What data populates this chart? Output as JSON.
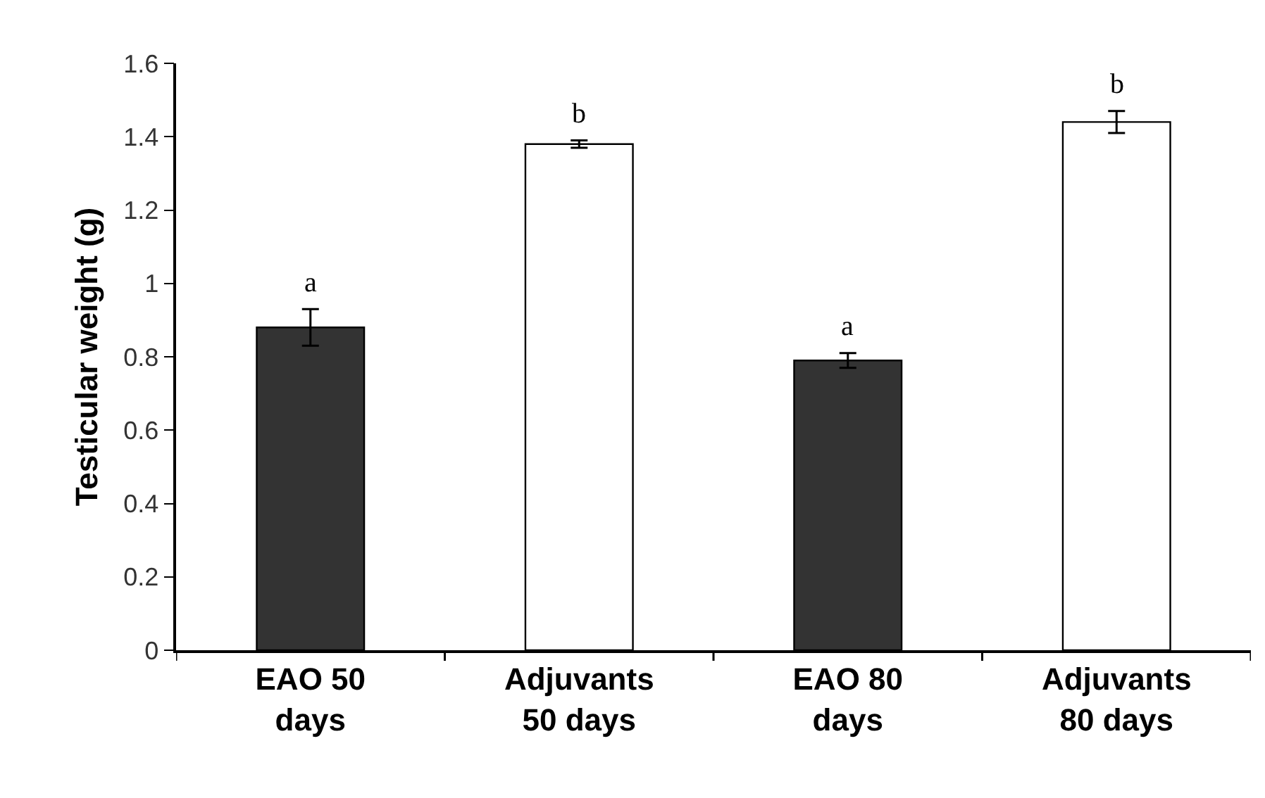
{
  "chart_data": {
    "type": "bar",
    "ylabel": "Testicular weight (g)",
    "categories": [
      "EAO 50\ndays",
      "Adjuvants\n50 days",
      "EAO 80\ndays",
      "Adjuvants\n80 days"
    ],
    "values": [
      0.88,
      1.38,
      0.79,
      1.44
    ],
    "errors": [
      0.05,
      0.01,
      0.02,
      0.03
    ],
    "colors": [
      "#333333",
      "#ffffff",
      "#333333",
      "#ffffff"
    ],
    "ylim": [
      0,
      1.6
    ],
    "yticks": [
      0,
      0.2,
      0.4,
      0.6,
      0.8,
      {
        "value": 1,
        "label": "1"
      },
      1.2,
      1.4,
      1.6
    ],
    "grid": false,
    "annotations": [
      {
        "text": "a",
        "x": "EAO 50\ndays",
        "y": 0.88
      },
      {
        "text": "b",
        "x": "Adjuvants\n50 days",
        "y": 1.38
      },
      {
        "text": "a",
        "x": "EAO 80\ndays",
        "y": 0.79
      },
      {
        "text": "b",
        "x": "Adjuvants\n80 days",
        "y": 1.44
      }
    ]
  }
}
